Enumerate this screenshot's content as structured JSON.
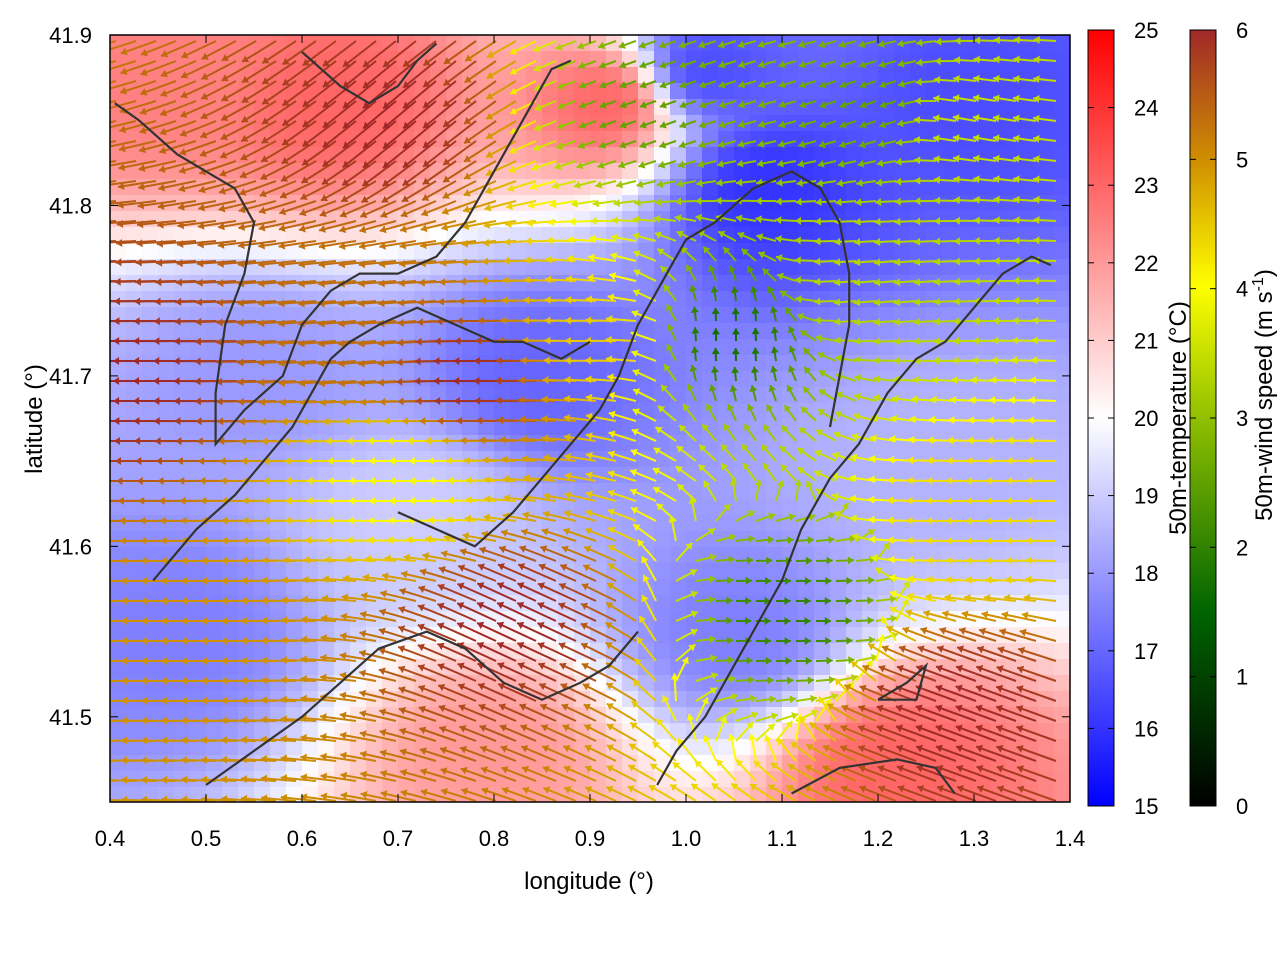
{
  "chart_data": {
    "type": "heatmap",
    "overlay": "wind vector field (arrows) with coastline contours",
    "xlabel": "longitude (°)",
    "ylabel": "latitude (°)",
    "xlim": [
      0.4,
      1.4
    ],
    "ylim": [
      41.45,
      41.9
    ],
    "x_ticks": [
      "0.4",
      "0.5",
      "0.6",
      "0.7",
      "0.8",
      "0.9",
      "1.0",
      "1.1",
      "1.2",
      "1.3",
      "1.4"
    ],
    "y_ticks": [
      "41.5",
      "41.6",
      "41.7",
      "41.8",
      "41.9"
    ],
    "temperature_colorbar": {
      "label": "50m-temperature (°C)",
      "range": [
        15,
        25
      ],
      "ticks": [
        "15",
        "16",
        "17",
        "18",
        "19",
        "20",
        "21",
        "22",
        "23",
        "24",
        "25"
      ],
      "colors": [
        "#0000ff",
        "#ffffff",
        "#ff0000"
      ]
    },
    "wind_colorbar": {
      "label_main": "50m-wind speed (m s",
      "label_sup": "-1",
      "label_end": ")",
      "range": [
        0,
        6
      ],
      "ticks": [
        "0",
        "1",
        "2",
        "3",
        "4",
        "5",
        "6"
      ],
      "colors": [
        "#000000",
        "#006400",
        "#90c000",
        "#ffff00",
        "#d09000",
        "#a02828"
      ]
    },
    "temperature_zones": [
      {
        "lon": 0.45,
        "lat": 41.88,
        "t": 22.5
      },
      {
        "lon": 0.64,
        "lat": 41.86,
        "t": 23.0
      },
      {
        "lon": 0.92,
        "lat": 41.86,
        "t": 23.0
      },
      {
        "lon": 0.8,
        "lat": 41.48,
        "t": 22.0
      },
      {
        "lon": 1.22,
        "lat": 41.47,
        "t": 23.0
      },
      {
        "lon": 1.08,
        "lat": 41.81,
        "t": 16.0
      },
      {
        "lon": 1.02,
        "lat": 41.88,
        "t": 16.5
      },
      {
        "lon": 1.3,
        "lat": 41.86,
        "t": 16.5
      },
      {
        "lon": 1.05,
        "lat": 41.55,
        "t": 17.5
      },
      {
        "lon": 0.47,
        "lat": 41.55,
        "t": 17.5
      },
      {
        "lon": 0.85,
        "lat": 41.7,
        "t": 17.0
      },
      {
        "lon": 0.55,
        "lat": 41.7,
        "t": 18.0
      },
      {
        "lon": 1.25,
        "lat": 41.65,
        "t": 18.5
      },
      {
        "lon": 0.72,
        "lat": 41.62,
        "t": 19.0
      }
    ],
    "wind_zones": [
      {
        "lon": 0.45,
        "lat": 41.7,
        "speed": 6.0,
        "dir": 180
      },
      {
        "lon": 0.52,
        "lat": 41.55,
        "speed": 4.8,
        "dir": 180
      },
      {
        "lon": 0.68,
        "lat": 41.72,
        "speed": 5.2,
        "dir": 185
      },
      {
        "lon": 0.8,
        "lat": 41.7,
        "speed": 6.0,
        "dir": 180
      },
      {
        "lon": 0.84,
        "lat": 41.55,
        "speed": 6.0,
        "dir": 155
      },
      {
        "lon": 0.72,
        "lat": 41.64,
        "speed": 3.5,
        "dir": 180
      },
      {
        "lon": 0.92,
        "lat": 41.72,
        "speed": 4.2,
        "dir": 180
      },
      {
        "lon": 0.72,
        "lat": 41.86,
        "speed": 6.0,
        "dir": 220
      },
      {
        "lon": 0.96,
        "lat": 41.86,
        "speed": 2.0,
        "dir": 200
      },
      {
        "lon": 1.04,
        "lat": 41.72,
        "speed": 1.3,
        "dir": 90
      },
      {
        "lon": 1.1,
        "lat": 41.56,
        "speed": 1.6,
        "dir": 0
      },
      {
        "lon": 1.2,
        "lat": 41.75,
        "speed": 2.8,
        "dir": 185
      },
      {
        "lon": 1.32,
        "lat": 41.62,
        "speed": 4.0,
        "dir": 180
      },
      {
        "lon": 1.3,
        "lat": 41.5,
        "speed": 6.0,
        "dir": 160
      },
      {
        "lon": 1.3,
        "lat": 41.85,
        "speed": 3.0,
        "dir": 170
      },
      {
        "lon": 1.2,
        "lat": 41.86,
        "speed": 2.0,
        "dir": 200
      }
    ],
    "contours": [
      [
        [
          0.405,
          41.86
        ],
        [
          0.43,
          41.85
        ],
        [
          0.47,
          41.83
        ],
        [
          0.5,
          41.82
        ],
        [
          0.53,
          41.81
        ],
        [
          0.55,
          41.79
        ],
        [
          0.54,
          41.76
        ],
        [
          0.52,
          41.73
        ],
        [
          0.51,
          41.69
        ],
        [
          0.51,
          41.66
        ],
        [
          0.54,
          41.68
        ],
        [
          0.58,
          41.7
        ],
        [
          0.6,
          41.73
        ],
        [
          0.63,
          41.75
        ],
        [
          0.66,
          41.76
        ],
        [
          0.7,
          41.76
        ],
        [
          0.74,
          41.77
        ],
        [
          0.77,
          41.79
        ],
        [
          0.8,
          41.82
        ],
        [
          0.82,
          41.84
        ],
        [
          0.84,
          41.86
        ],
        [
          0.86,
          41.88
        ],
        [
          0.88,
          41.885
        ]
      ],
      [
        [
          0.445,
          41.58
        ],
        [
          0.49,
          41.61
        ],
        [
          0.53,
          41.63
        ],
        [
          0.56,
          41.65
        ],
        [
          0.59,
          41.67
        ],
        [
          0.61,
          41.69
        ],
        [
          0.63,
          41.71
        ],
        [
          0.65,
          41.72
        ],
        [
          0.68,
          41.73
        ],
        [
          0.72,
          41.74
        ],
        [
          0.76,
          41.73
        ],
        [
          0.8,
          41.72
        ],
        [
          0.83,
          41.72
        ],
        [
          0.87,
          41.71
        ],
        [
          0.9,
          41.72
        ]
      ],
      [
        [
          0.6,
          41.89
        ],
        [
          0.64,
          41.87
        ],
        [
          0.67,
          41.86
        ],
        [
          0.7,
          41.87
        ],
        [
          0.72,
          41.885
        ],
        [
          0.74,
          41.895
        ]
      ],
      [
        [
          0.7,
          41.62
        ],
        [
          0.74,
          41.61
        ],
        [
          0.78,
          41.6
        ],
        [
          0.82,
          41.62
        ],
        [
          0.85,
          41.64
        ],
        [
          0.88,
          41.66
        ],
        [
          0.91,
          41.68
        ],
        [
          0.93,
          41.7
        ],
        [
          0.95,
          41.73
        ],
        [
          0.98,
          41.76
        ],
        [
          1.0,
          41.78
        ],
        [
          1.03,
          41.79
        ],
        [
          1.07,
          41.81
        ],
        [
          1.11,
          41.82
        ],
        [
          1.14,
          41.81
        ],
        [
          1.16,
          41.79
        ],
        [
          1.17,
          41.76
        ],
        [
          1.17,
          41.73
        ],
        [
          1.16,
          41.7
        ],
        [
          1.15,
          41.67
        ]
      ],
      [
        [
          0.97,
          41.46
        ],
        [
          0.99,
          41.48
        ],
        [
          1.02,
          41.5
        ],
        [
          1.05,
          41.53
        ],
        [
          1.08,
          41.56
        ],
        [
          1.1,
          41.58
        ],
        [
          1.12,
          41.61
        ],
        [
          1.15,
          41.64
        ],
        [
          1.18,
          41.66
        ],
        [
          1.21,
          41.69
        ],
        [
          1.24,
          41.71
        ],
        [
          1.27,
          41.72
        ],
        [
          1.3,
          41.74
        ],
        [
          1.33,
          41.76
        ],
        [
          1.36,
          41.77
        ],
        [
          1.38,
          41.765
        ]
      ],
      [
        [
          1.11,
          41.455
        ],
        [
          1.16,
          41.47
        ],
        [
          1.22,
          41.475
        ],
        [
          1.26,
          41.47
        ],
        [
          1.28,
          41.455
        ]
      ],
      [
        [
          1.2,
          41.51
        ],
        [
          1.24,
          41.51
        ],
        [
          1.25,
          41.53
        ],
        [
          1.23,
          41.52
        ],
        [
          1.2,
          41.51
        ]
      ],
      [
        [
          0.5,
          41.46
        ],
        [
          0.55,
          41.48
        ],
        [
          0.6,
          41.5
        ],
        [
          0.64,
          41.52
        ],
        [
          0.68,
          41.54
        ],
        [
          0.73,
          41.55
        ],
        [
          0.77,
          41.54
        ],
        [
          0.81,
          41.52
        ],
        [
          0.85,
          41.51
        ],
        [
          0.89,
          41.52
        ],
        [
          0.92,
          41.53
        ],
        [
          0.95,
          41.55
        ]
      ]
    ]
  }
}
